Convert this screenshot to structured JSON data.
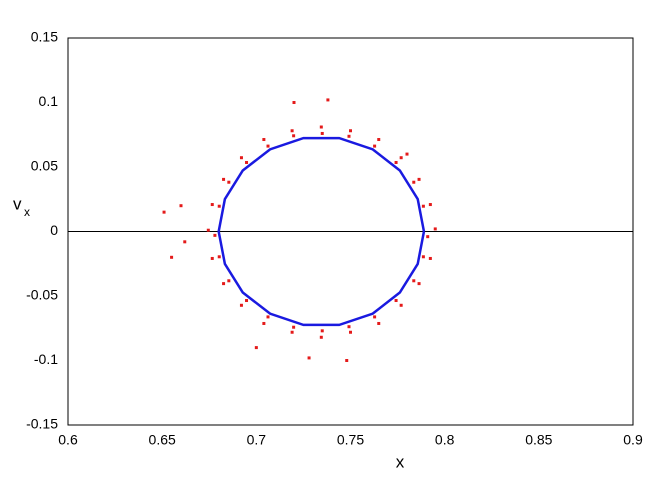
{
  "chart_data": {
    "type": "scatter",
    "xlabel": "x",
    "ylabel": "v",
    "ylabel_subscript": "x",
    "xlim": [
      0.6,
      0.9
    ],
    "xticks": [
      0.6,
      0.65,
      0.7,
      0.75,
      0.8,
      0.85,
      0.9
    ],
    "ylim": [
      -0.15,
      0.15
    ],
    "yticks": [
      -0.15,
      -0.1,
      -0.05,
      0,
      0.05,
      0.1,
      0.15
    ],
    "zero_line": true,
    "grid": false,
    "series": [
      {
        "color": "#e41a1a",
        "style": "points",
        "x": [
          0.795,
          0.791,
          0.7924,
          0.7887,
          0.7864,
          0.7836,
          0.7769,
          0.7742,
          0.765,
          0.7628,
          0.75,
          0.7492,
          0.7345,
          0.735,
          0.719,
          0.7198,
          0.704,
          0.7062,
          0.6921,
          0.6948,
          0.6826,
          0.6854,
          0.6766,
          0.6803,
          0.6745,
          0.678,
          0.6766,
          0.6803,
          0.6826,
          0.6854,
          0.6921,
          0.6948,
          0.704,
          0.7062,
          0.719,
          0.7198,
          0.7345,
          0.735,
          0.75,
          0.7492,
          0.765,
          0.7628,
          0.7769,
          0.7742,
          0.7864,
          0.7836,
          0.7924,
          0.7887,
          0.651,
          0.655,
          0.66,
          0.662,
          0.72,
          0.738,
          0.748,
          0.728,
          0.7,
          0.78
        ],
        "values": [
          0.002,
          -0.004,
          0.0209,
          0.0196,
          0.0404,
          0.0382,
          0.0572,
          0.0535,
          0.0713,
          0.0662,
          0.0781,
          0.0738,
          0.081,
          0.076,
          0.0781,
          0.0742,
          0.0713,
          0.0662,
          0.0572,
          0.0535,
          0.0404,
          0.0382,
          0.0209,
          0.0196,
          0.001,
          -0.003,
          -0.0209,
          -0.0196,
          -0.0404,
          -0.0382,
          -0.0572,
          -0.0535,
          -0.0713,
          -0.0662,
          -0.0781,
          -0.0742,
          -0.082,
          -0.077,
          -0.0781,
          -0.0738,
          -0.0713,
          -0.0662,
          -0.0572,
          -0.0535,
          -0.0404,
          -0.0382,
          -0.0209,
          -0.0196,
          0.015,
          -0.02,
          0.02,
          -0.008,
          0.1,
          0.102,
          -0.1,
          -0.098,
          -0.09,
          0.06
        ]
      },
      {
        "color": "#1a1ae0",
        "style": "line",
        "x": [
          0.789,
          0.7857,
          0.7762,
          0.7618,
          0.744,
          0.725,
          0.7073,
          0.6928,
          0.6833,
          0.68,
          0.6833,
          0.6928,
          0.7073,
          0.725,
          0.744,
          0.7618,
          0.7762,
          0.7857,
          0.789
        ],
        "values": [
          0,
          0.0251,
          0.0473,
          0.0637,
          0.0724,
          0.0724,
          0.0637,
          0.0473,
          0.0251,
          0,
          -0.0251,
          -0.0473,
          -0.0637,
          -0.0724,
          -0.0724,
          -0.0637,
          -0.0473,
          -0.0251,
          0
        ]
      }
    ]
  }
}
